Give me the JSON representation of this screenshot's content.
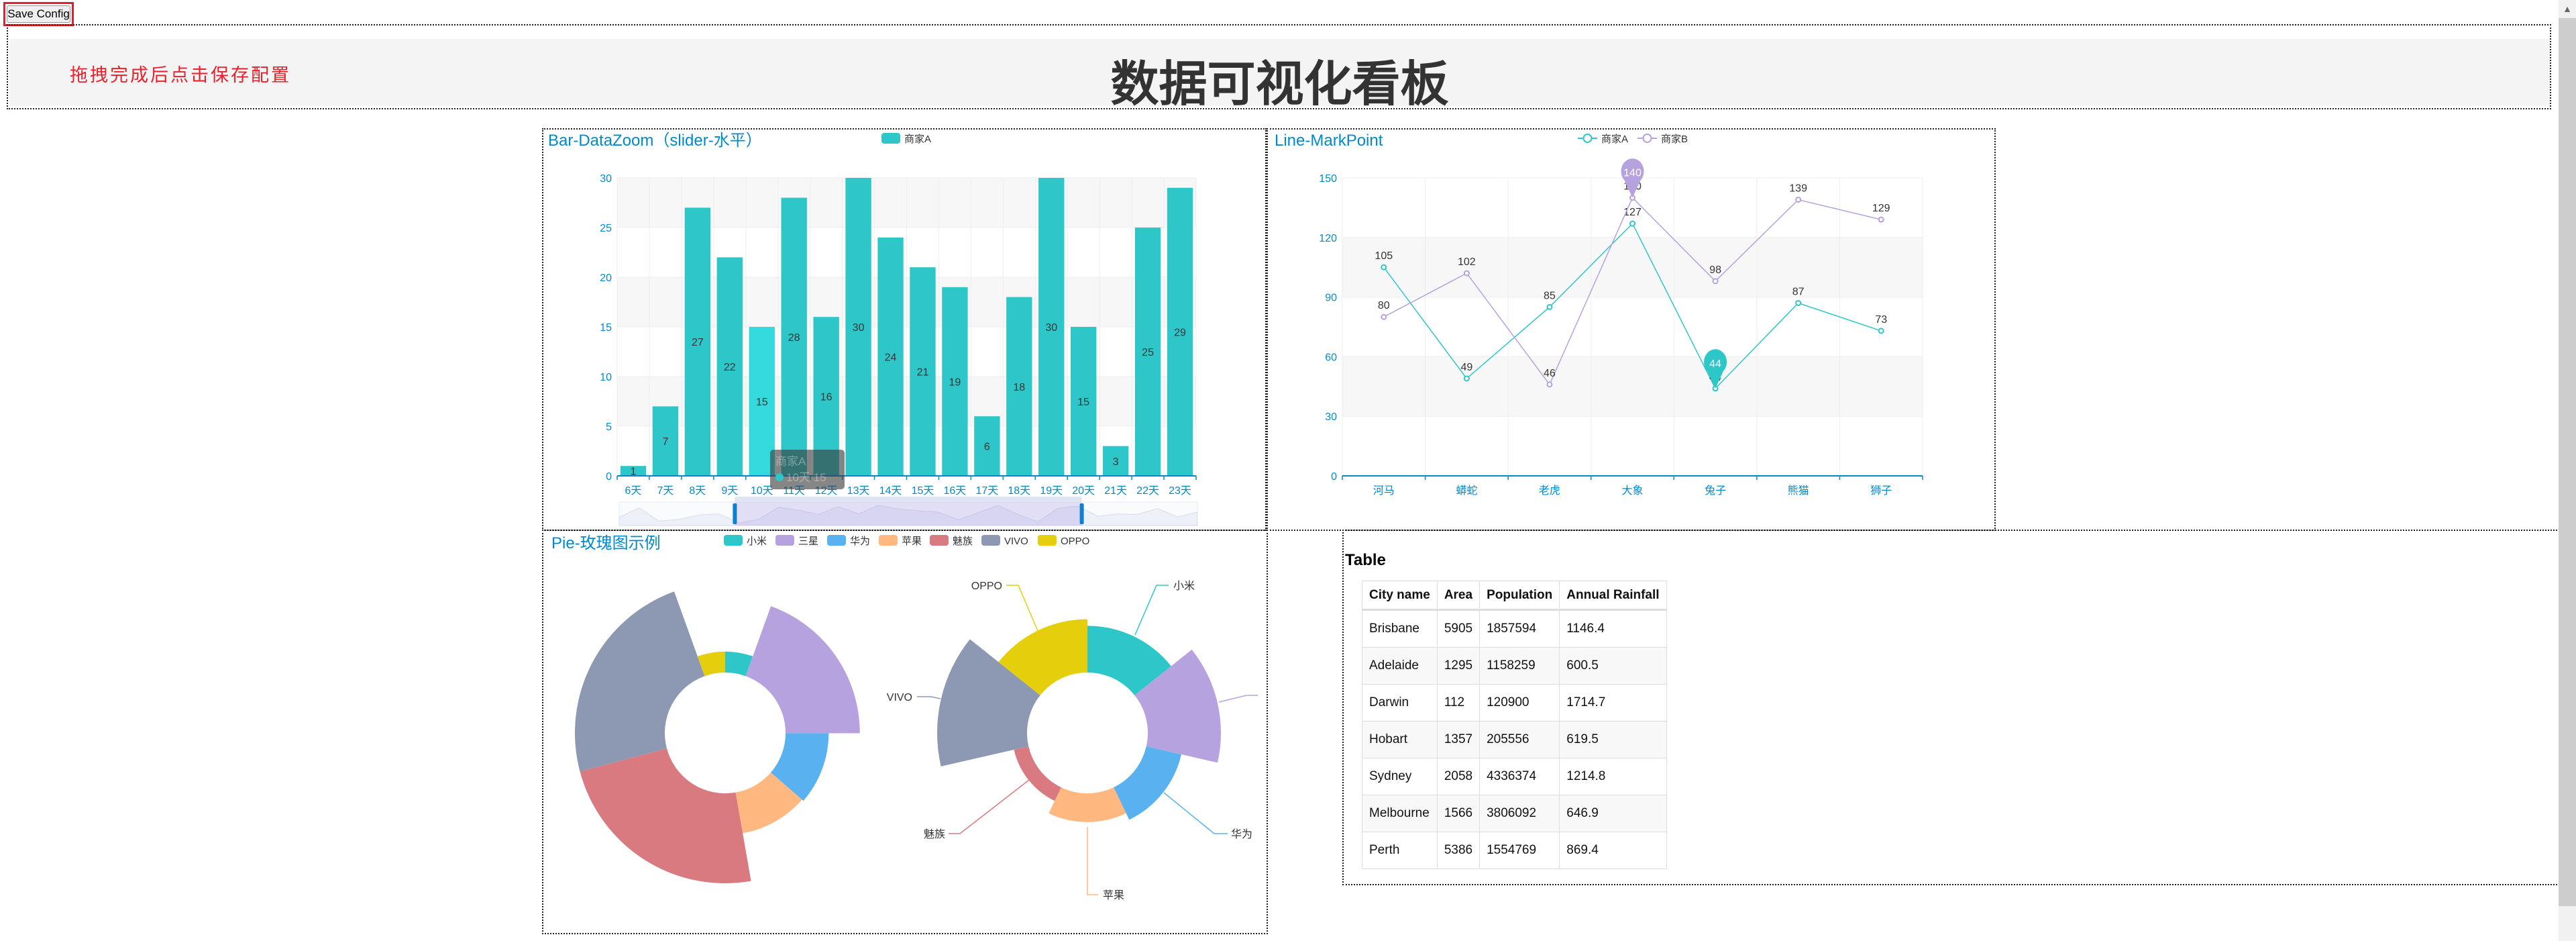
{
  "toolbar": {
    "save_label": "Save Config"
  },
  "header": {
    "hint": "拖拽完成后点击保存配置",
    "title": "数据可视化看板"
  },
  "colors": {
    "title": "#008acd",
    "palette": [
      "#2ec7c9",
      "#b6a2de",
      "#5ab1ef",
      "#ffb980",
      "#d87a80",
      "#8d98b3",
      "#e5cf0d"
    ],
    "highlight": "#33d9dc"
  },
  "chart_data": [
    {
      "type": "bar",
      "title": "Bar-DataZoom（slider-水平）",
      "legend": [
        "商家A"
      ],
      "categories": [
        "6天",
        "7天",
        "8天",
        "9天",
        "10天",
        "11天",
        "12天",
        "13天",
        "14天",
        "15天",
        "16天",
        "17天",
        "18天",
        "19天",
        "20天",
        "21天",
        "22天",
        "23天"
      ],
      "series": [
        {
          "name": "商家A",
          "values": [
            1,
            7,
            27,
            22,
            15,
            28,
            16,
            30,
            24,
            21,
            19,
            6,
            18,
            30,
            15,
            3,
            25,
            29
          ]
        }
      ],
      "ylim": [
        0,
        30
      ],
      "yticks": [
        0,
        5,
        10,
        15,
        20,
        25,
        30
      ],
      "grid": true,
      "label_position": "inside",
      "datazoom": {
        "type": "slider",
        "orient": "horizontal",
        "start_percent": 20,
        "end_percent": 80,
        "shadow_values": [
          10,
          26,
          4,
          7,
          14,
          16,
          1,
          7,
          27,
          22,
          15,
          28,
          16,
          30,
          24,
          21,
          19,
          6,
          18,
          30,
          15,
          3,
          25,
          29,
          12,
          16,
          15,
          25,
          11,
          19
        ]
      },
      "tooltip": {
        "series": "商家A",
        "category": "10天",
        "value": "15"
      }
    },
    {
      "type": "line",
      "title": "Line-MarkPoint",
      "legend": [
        "商家A",
        "商家B"
      ],
      "categories": [
        "河马",
        "蟒蛇",
        "老虎",
        "大象",
        "兔子",
        "熊猫",
        "狮子"
      ],
      "series": [
        {
          "name": "商家A",
          "values": [
            105,
            49,
            85,
            127,
            44,
            87,
            73
          ],
          "markpoint": {
            "type": "min",
            "value": 44
          }
        },
        {
          "name": "商家B",
          "values": [
            80,
            102,
            46,
            140,
            98,
            139,
            129
          ],
          "markpoint": {
            "type": "max",
            "value": 140
          }
        }
      ],
      "ylim": [
        0,
        150
      ],
      "yticks": [
        0,
        30,
        60,
        90,
        120,
        150
      ],
      "grid": true
    },
    {
      "type": "pie",
      "title": "Pie-玫瑰图示例",
      "legend": [
        "小米",
        "三星",
        "华为",
        "苹果",
        "魅族",
        "VIVO",
        "OPPO"
      ],
      "pies": [
        {
          "rose_type": "radius",
          "labels_shown": false,
          "values": [
            35,
            124,
            72,
            69,
            150,
            150,
            35
          ]
        },
        {
          "rose_type": "area",
          "labels_shown": true,
          "values": [
            78,
            122,
            60,
            48,
            25,
            150,
            89
          ]
        }
      ]
    }
  ],
  "table": {
    "title": "Table",
    "headers": [
      "City name",
      "Area",
      "Population",
      "Annual Rainfall"
    ],
    "rows": [
      [
        "Brisbane",
        "5905",
        "1857594",
        "1146.4"
      ],
      [
        "Adelaide",
        "1295",
        "1158259",
        "600.5"
      ],
      [
        "Darwin",
        "112",
        "120900",
        "1714.7"
      ],
      [
        "Hobart",
        "1357",
        "205556",
        "619.5"
      ],
      [
        "Sydney",
        "2058",
        "4336374",
        "1214.8"
      ],
      [
        "Melbourne",
        "1566",
        "3806092",
        "646.9"
      ],
      [
        "Perth",
        "5386",
        "1554769",
        "869.4"
      ]
    ]
  },
  "scrollbar": {
    "up_icon": "chevron-up-icon"
  }
}
